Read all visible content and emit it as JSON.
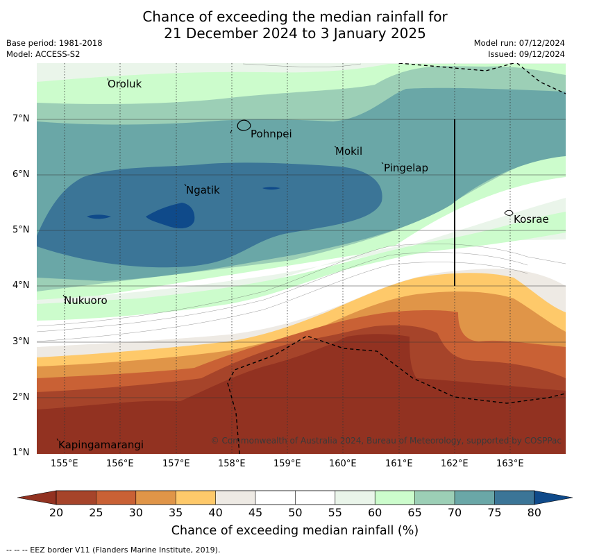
{
  "title": {
    "line1": "Chance of exceeding the median rainfall for",
    "line2": "21 December 2024 to 3 January 2025"
  },
  "meta": {
    "base_period": "Base period: 1981-2018",
    "model": "Model: ACCESS-S2",
    "model_run": "Model run: 07/12/2024",
    "issued": "Issued: 09/12/2024"
  },
  "axes": {
    "lat_labels": [
      "7°N",
      "6°N",
      "5°N",
      "4°N",
      "3°N",
      "2°N",
      "1°N"
    ],
    "lon_labels": [
      "155°E",
      "156°E",
      "157°E",
      "158°E",
      "159°E",
      "160°E",
      "161°E",
      "162°E",
      "163°E"
    ]
  },
  "places": [
    {
      "name": "Oroluk",
      "lon": 155.7,
      "lat": 7.65
    },
    {
      "name": "Pohnpei",
      "lon": 158.3,
      "lat": 6.95
    },
    {
      "name": "Mokil",
      "lon": 159.85,
      "lat": 6.4
    },
    {
      "name": "Pingelap",
      "lon": 160.75,
      "lat": 6.15
    },
    {
      "name": "Ngatik",
      "lon": 157.1,
      "lat": 5.75
    },
    {
      "name": "Kosrae",
      "lon": 163.0,
      "lat": 5.3
    },
    {
      "name": "Nukuoro",
      "lon": 154.85,
      "lat": 3.75
    },
    {
      "name": "Kapingamarangi",
      "lon": 154.85,
      "lat": 1.15
    }
  ],
  "legend": {
    "ticks": [
      "20",
      "25",
      "30",
      "35",
      "40",
      "45",
      "50",
      "55",
      "60",
      "65",
      "70",
      "75",
      "80"
    ],
    "colors": [
      "#a6442a",
      "#c96135",
      "#e09548",
      "#fec96a",
      "#eeeae4",
      "#ffffff",
      "#ffffff",
      "#eaf5ea",
      "#ccfccc",
      "#9ccfb6",
      "#6aa7a7",
      "#3b7597"
    ],
    "under_color": "#923221",
    "over_color": "#0f4a8a",
    "title": "Chance of exceeding median rainfall (%)"
  },
  "copyright": "© Commonwealth of Australia 2024, Bureau of Meteorology, supported by COSPPac",
  "footer": "-- -- -- EEZ border V11 (Flanders Marine Institute, 2019)."
}
